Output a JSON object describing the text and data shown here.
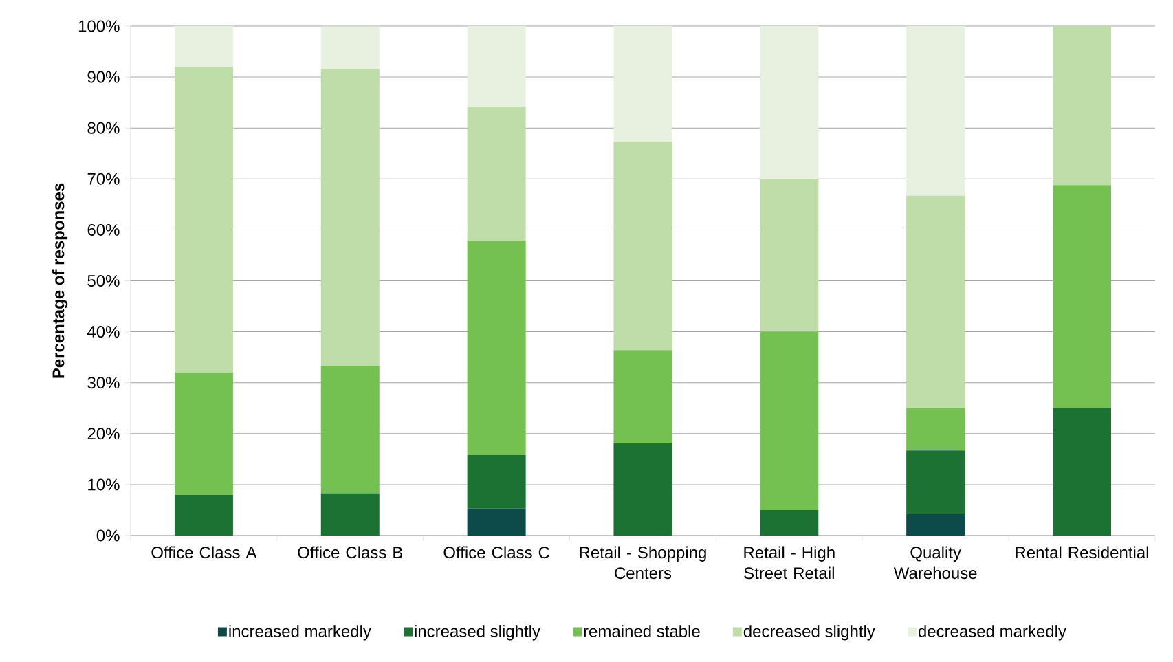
{
  "chart_data": {
    "type": "bar",
    "stacked": true,
    "ylabel": "Percentage of responses",
    "categories": [
      "Office Class A",
      "Office Class B",
      "Office Class C",
      "Retail - Shopping Centers",
      "Retail - High Street Retail",
      "Quality Warehouse",
      "Rental Residential"
    ],
    "series": [
      {
        "name": "increased markedly",
        "color": "#0d4a4a",
        "values": [
          0,
          0,
          5.3,
          0,
          0,
          4.2,
          0
        ]
      },
      {
        "name": "increased slightly",
        "color": "#1b7233",
        "values": [
          8,
          8.3,
          10.5,
          18.2,
          5,
          12.5,
          25
        ]
      },
      {
        "name": "remained  stable",
        "color": "#74c050",
        "values": [
          24,
          25,
          42.1,
          18.2,
          35,
          8.3,
          43.8
        ]
      },
      {
        "name": "decreased slightly",
        "color": "#bfdda8",
        "values": [
          60,
          58.3,
          26.3,
          40.9,
          30,
          41.7,
          31.2
        ]
      },
      {
        "name": "decreased markedly",
        "color": "#e8f1e0",
        "values": [
          8,
          8.3,
          15.8,
          22.7,
          30,
          33.3,
          0
        ]
      }
    ],
    "ylim": [
      0,
      100
    ],
    "yticks": [
      {
        "value": 0,
        "label": "0%"
      },
      {
        "value": 10,
        "label": "10%"
      },
      {
        "value": 20,
        "label": "20%"
      },
      {
        "value": 30,
        "label": "30%"
      },
      {
        "value": 40,
        "label": "40%"
      },
      {
        "value": 50,
        "label": "50%"
      },
      {
        "value": 60,
        "label": "60%"
      },
      {
        "value": 70,
        "label": "70%"
      },
      {
        "value": 80,
        "label": "80%"
      },
      {
        "value": 90,
        "label": "90%"
      },
      {
        "value": 100,
        "label": "100%"
      }
    ],
    "grid": "y",
    "legend": "bottom"
  }
}
